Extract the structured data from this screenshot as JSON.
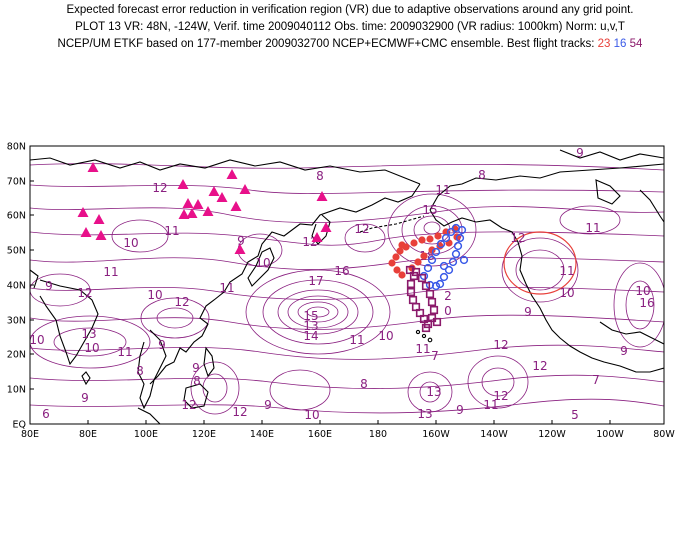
{
  "header": {
    "line1": "Expected forecast error reduction in verification region (VR) due to adaptive observations around any grid point.",
    "line2": "PLOT 13 VR: 48N, -124W, Verif. time 2009040112 Obs. time: 2009032900 (VR radius: 1000km) Norm: u,v,T",
    "line3_prefix": "NCEP/UM ETKF based on 177-member 2009032700 NCEP+ECMWF+CMC ensemble. Best flight tracks:",
    "tracks": [
      {
        "label": "23",
        "color": "#e8403a"
      },
      {
        "label": "16",
        "color": "#3a5ae8"
      },
      {
        "label": "54",
        "color": "#8b1a6b"
      }
    ]
  },
  "axes": {
    "lon_labels": [
      "80E",
      "80E",
      "100E",
      "120E",
      "140E",
      "160E",
      "180",
      "160W",
      "140W",
      "120W",
      "100W",
      "80W"
    ],
    "lat_labels": [
      "EQ",
      "10N",
      "20N",
      "30N",
      "40N",
      "50N",
      "60N",
      "70N",
      "80N"
    ]
  },
  "colors": {
    "contour": "#8a2080",
    "coast": "#000000",
    "triangle": "#e8108a",
    "vr_circle": "#e8403a"
  },
  "contour_labels": [
    "9",
    "12",
    "8",
    "11",
    "11",
    "15",
    "8",
    "12",
    "9",
    "10",
    "12",
    "11",
    "10",
    "11",
    "9",
    "10",
    "11",
    "18",
    "17",
    "16",
    "12",
    "12",
    "12",
    "11",
    "12",
    "10",
    "16",
    "13",
    "10",
    "9",
    "15",
    "13",
    "14",
    "11",
    "10",
    "2",
    "0",
    "9",
    "10",
    "11",
    "12",
    "10",
    "11",
    "8",
    "9",
    "8",
    "8",
    "7",
    "9",
    "12",
    "7",
    "6",
    "10",
    "9",
    "12",
    "13",
    "11",
    "9",
    "13",
    "12",
    "5",
    "9"
  ],
  "icons": {
    "sites": "triangle-icon",
    "track": "flight-track-marker"
  }
}
